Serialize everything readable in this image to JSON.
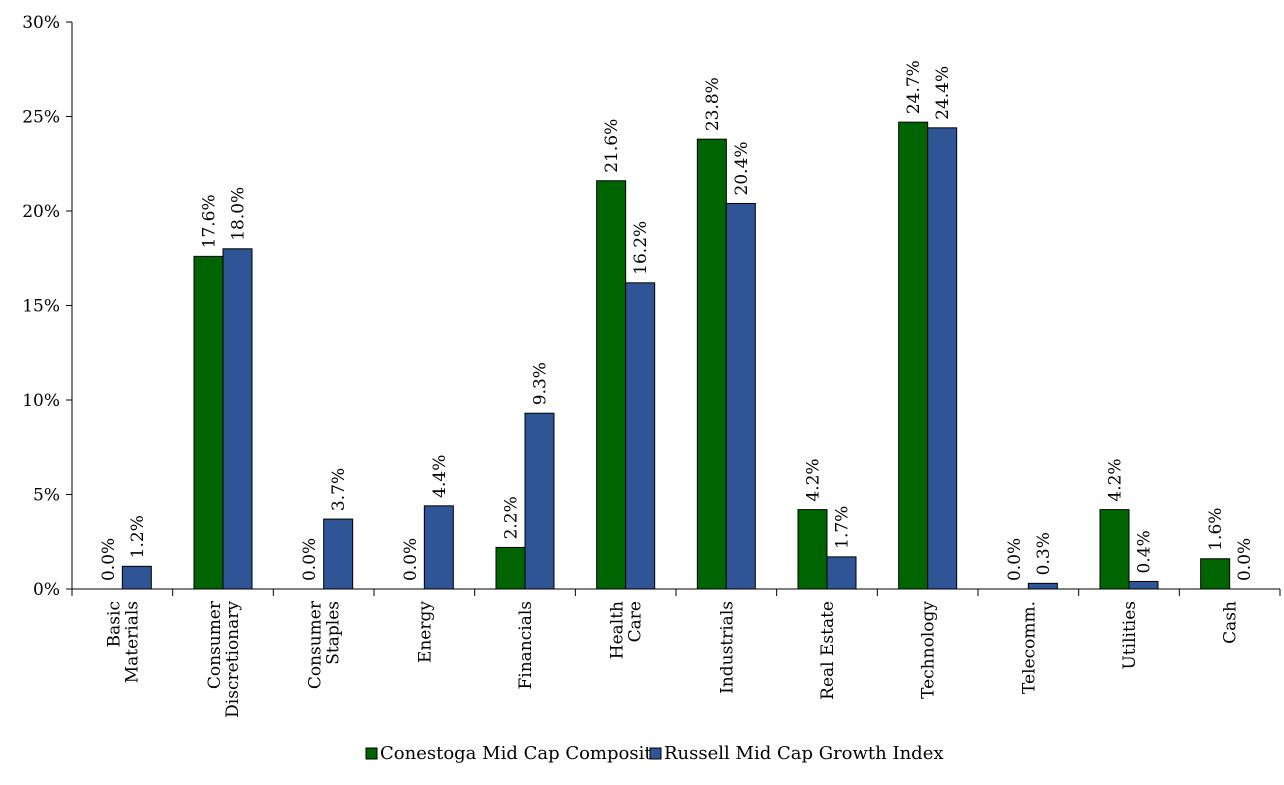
{
  "chart_data": {
    "type": "bar",
    "categories": [
      [
        "Basic",
        "Materials"
      ],
      [
        "Consumer",
        "Discretionary"
      ],
      [
        "Consumer",
        "Staples"
      ],
      [
        "Energy"
      ],
      [
        "Financials"
      ],
      [
        "Health",
        "Care"
      ],
      [
        "Industrials"
      ],
      [
        "Real Estate"
      ],
      [
        "Technology"
      ],
      [
        "Telecomm."
      ],
      [
        "Utilities"
      ],
      [
        "Cash"
      ]
    ],
    "series": [
      {
        "name": "Conestoga Mid Cap Composite",
        "color": "#006400",
        "values": [
          0.0,
          17.6,
          0.0,
          0.0,
          2.2,
          21.6,
          23.8,
          4.2,
          24.7,
          0.0,
          4.2,
          1.6
        ],
        "labels": [
          "0.0%",
          "17.6%",
          "0.0%",
          "0.0%",
          "2.2%",
          "21.6%",
          "23.8%",
          "4.2%",
          "24.7%",
          "0.0%",
          "4.2%",
          "1.6%"
        ]
      },
      {
        "name": "Russell Mid Cap Growth Index",
        "color": "#2F5597",
        "values": [
          1.2,
          18.0,
          3.7,
          4.4,
          9.3,
          16.2,
          20.4,
          1.7,
          24.4,
          0.3,
          0.4,
          0.0
        ],
        "labels": [
          "1.2%",
          "18.0%",
          "3.7%",
          "4.4%",
          "9.3%",
          "16.2%",
          "20.4%",
          "1.7%",
          "24.4%",
          "0.3%",
          "0.4%",
          "0.0%"
        ]
      }
    ],
    "ylim": [
      0,
      30
    ],
    "yticks": [
      0,
      5,
      10,
      15,
      20,
      25,
      30
    ],
    "ytick_labels": [
      "0%",
      "5%",
      "10%",
      "15%",
      "20%",
      "25%",
      "30%"
    ],
    "grid": false,
    "legend_position": "bottom",
    "title": "",
    "xlabel": "",
    "ylabel": ""
  }
}
